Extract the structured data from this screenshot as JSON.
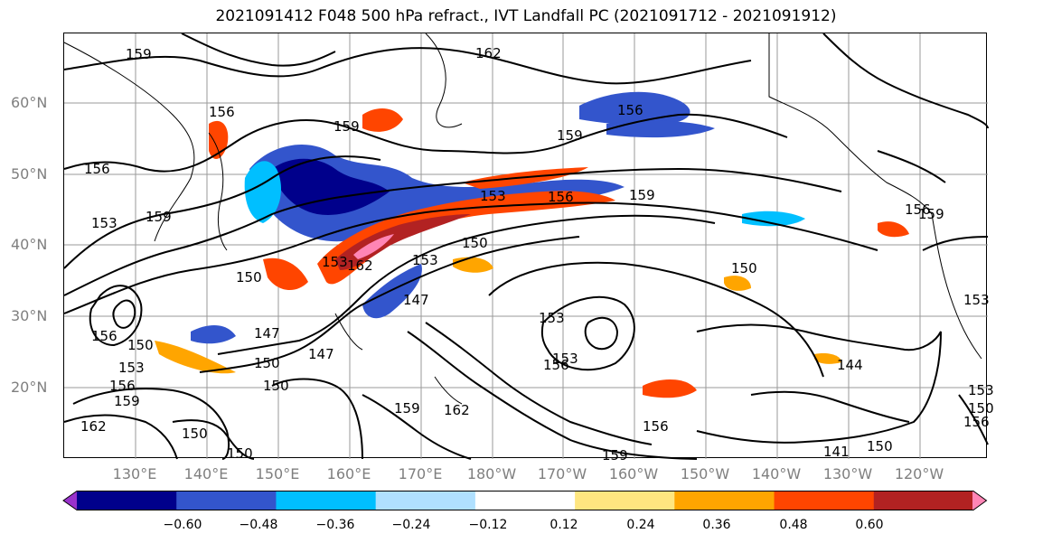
{
  "title": "2021091412 F048 500 hPa refract., IVT Landfall PC (2021091712 - 2021091912)",
  "lat_labels": [
    "60°N",
    "50°N",
    "40°N",
    "30°N",
    "20°N"
  ],
  "lon_labels": [
    "130°E",
    "140°E",
    "150°E",
    "160°E",
    "170°E",
    "180°W",
    "170°W",
    "160°W",
    "150°W",
    "140°W",
    "130°W",
    "120°W"
  ],
  "colorbar": {
    "colors": [
      "#9932cc",
      "#00008b",
      "#3355cc",
      "#00bfff",
      "#b0e0ff",
      "#ffffff",
      "#ffe680",
      "#ffa500",
      "#ff4500",
      "#b22222",
      "#ff85b5"
    ],
    "tick_labels": [
      "−0.60",
      "−0.48",
      "−0.36",
      "−0.24",
      "−0.12",
      "0.12",
      "0.24",
      "0.36",
      "0.48",
      "0.60"
    ]
  },
  "contour_labels": [
    "159",
    "162",
    "156",
    "159",
    "156",
    "159",
    "156",
    "153",
    "159",
    "153",
    "156",
    "159",
    "153",
    "150",
    "162",
    "153",
    "150",
    "150",
    "153",
    "147",
    "159",
    "147",
    "153",
    "156",
    "144",
    "150",
    "159",
    "162",
    "150",
    "150",
    "159",
    "141",
    "150",
    "156",
    "156",
    "162",
    "159",
    "156",
    "153",
    "150",
    "156",
    "147",
    "150",
    "153",
    "150",
    "156",
    "153"
  ]
}
